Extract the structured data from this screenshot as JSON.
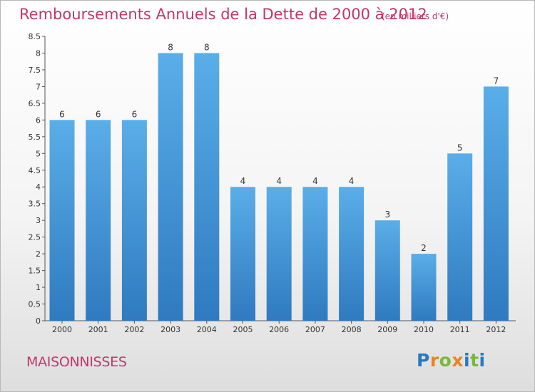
{
  "header": {
    "title": "Remboursements Annuels de la Dette de 2000 à 2012",
    "subtitle": "(en milliers d'€)"
  },
  "footer": {
    "commune": "MAISONNISSES",
    "logo_letters": [
      {
        "char": "P",
        "color": "#2a78c2"
      },
      {
        "char": "r",
        "color": "#e8841e"
      },
      {
        "char": "o",
        "color": "#7ab83a"
      },
      {
        "char": "x",
        "color": "#e8841e"
      },
      {
        "char": "i",
        "color": "#2a78c2"
      },
      {
        "char": "t",
        "color": "#7ab83a"
      },
      {
        "char": "i",
        "color": "#2a78c2"
      }
    ]
  },
  "colors": {
    "bar_top": "#5aaee8",
    "bar_bottom": "#2f7ac0",
    "text": "#333333",
    "title": "#c4356a"
  },
  "chart_data": {
    "type": "bar",
    "title": "Remboursements Annuels de la Dette de 2000 à 2012",
    "xlabel": "",
    "ylabel": "",
    "categories": [
      "2000",
      "2001",
      "2002",
      "2003",
      "2004",
      "2005",
      "2006",
      "2007",
      "2008",
      "2009",
      "2010",
      "2011",
      "2012"
    ],
    "values": [
      6,
      6,
      6,
      8,
      8,
      4,
      4,
      4,
      4,
      3,
      2,
      5,
      7
    ],
    "data_labels": [
      "6",
      "6",
      "6",
      "8",
      "8",
      "4",
      "4",
      "4",
      "4",
      "3",
      "2",
      "5",
      "7"
    ],
    "ylim": [
      0,
      8.5
    ],
    "yticks": [
      "0",
      "0.5",
      "1",
      "1.5",
      "2",
      "2.5",
      "3",
      "3.5",
      "4",
      "4.5",
      "5",
      "5.5",
      "6",
      "6.5",
      "7",
      "7.5",
      "8",
      "8.5"
    ],
    "grid": false,
    "legend": "none"
  }
}
